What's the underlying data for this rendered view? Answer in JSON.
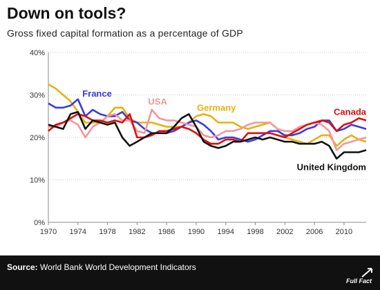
{
  "title": "Down on tools?",
  "subtitle": "Gross fixed capital formation as a percentage of GDP",
  "source": {
    "label": "Source:",
    "text": "World Bank World Development Indicators"
  },
  "brand": "Full Fact",
  "chart_data": {
    "type": "line",
    "title": "Down on tools?",
    "subtitle": "Gross fixed capital formation as a percentage of GDP",
    "xlabel": "",
    "ylabel": "",
    "xlim": [
      1970,
      2013
    ],
    "ylim": [
      0,
      40
    ],
    "x_ticks": [
      1970,
      1974,
      1978,
      1982,
      1986,
      1990,
      1994,
      1998,
      2002,
      2006,
      2010
    ],
    "y_ticks": [
      0,
      10,
      20,
      30,
      40
    ],
    "y_tick_labels": [
      "0%",
      "10%",
      "20%",
      "30%",
      "40%"
    ],
    "grid": true,
    "legend": "inline labels",
    "x": [
      1970,
      1971,
      1972,
      1973,
      1974,
      1975,
      1976,
      1977,
      1978,
      1979,
      1980,
      1981,
      1982,
      1983,
      1984,
      1985,
      1986,
      1987,
      1988,
      1989,
      1990,
      1991,
      1992,
      1993,
      1994,
      1995,
      1996,
      1997,
      1998,
      1999,
      2000,
      2001,
      2002,
      2003,
      2004,
      2005,
      2006,
      2007,
      2008,
      2009,
      2010,
      2011,
      2012,
      2013
    ],
    "series": [
      {
        "name": "Germany",
        "color": "#e8b10c",
        "values": [
          32.5,
          31.5,
          30.0,
          28.5,
          26.0,
          23.5,
          23.5,
          23.5,
          25.0,
          27.0,
          27.0,
          24.5,
          23.5,
          23.5,
          23.5,
          23.0,
          22.5,
          22.5,
          22.5,
          23.5,
          25.0,
          25.5,
          25.0,
          23.5,
          23.5,
          23.5,
          22.5,
          22.0,
          22.5,
          23.0,
          23.5,
          22.0,
          20.0,
          19.5,
          19.0,
          18.5,
          19.5,
          20.5,
          20.5,
          18.0,
          19.5,
          20.5,
          19.5,
          19.0
        ]
      },
      {
        "name": "France",
        "color": "#3a3ae0",
        "values": [
          28.0,
          27.0,
          27.0,
          27.5,
          29.0,
          25.0,
          26.5,
          25.5,
          25.0,
          25.0,
          26.0,
          24.0,
          23.5,
          22.0,
          21.0,
          21.0,
          21.0,
          21.5,
          22.5,
          23.5,
          24.0,
          23.0,
          21.5,
          19.5,
          20.0,
          20.0,
          19.5,
          19.0,
          19.5,
          20.5,
          21.5,
          21.5,
          20.5,
          20.5,
          21.0,
          22.0,
          22.5,
          24.0,
          24.0,
          21.5,
          22.0,
          23.0,
          22.5,
          22.0
        ]
      },
      {
        "name": "USA",
        "color": "#f5969a",
        "values": [
          22.5,
          22.5,
          23.5,
          24.0,
          23.0,
          20.0,
          22.5,
          23.5,
          25.0,
          25.5,
          24.0,
          24.0,
          21.5,
          21.0,
          26.5,
          24.5,
          24.0,
          24.0,
          23.5,
          23.0,
          22.5,
          20.5,
          20.0,
          20.5,
          21.5,
          21.5,
          22.0,
          23.0,
          23.5,
          23.5,
          23.5,
          22.0,
          21.5,
          21.5,
          22.5,
          23.0,
          23.5,
          23.0,
          21.5,
          17.0,
          18.5,
          19.0,
          19.5,
          20.0
        ]
      },
      {
        "name": "Canada",
        "color": "#e00d0d",
        "values": [
          21.5,
          23.0,
          23.5,
          24.5,
          25.5,
          25.0,
          24.0,
          24.0,
          23.5,
          24.0,
          23.5,
          25.5,
          20.0,
          20.0,
          20.5,
          21.5,
          21.5,
          22.0,
          22.5,
          22.0,
          21.0,
          19.5,
          18.5,
          18.5,
          19.5,
          19.5,
          19.0,
          21.0,
          21.0,
          21.0,
          21.0,
          20.5,
          20.0,
          21.0,
          22.0,
          23.0,
          23.5,
          24.0,
          23.5,
          21.5,
          23.0,
          23.5,
          24.5,
          24.0
        ]
      },
      {
        "name": "United Kingdom",
        "color": "#111111",
        "values": [
          23.0,
          22.5,
          22.0,
          25.5,
          26.0,
          22.0,
          24.0,
          23.5,
          23.0,
          23.5,
          20.0,
          18.0,
          19.0,
          20.0,
          21.0,
          21.0,
          21.0,
          22.5,
          24.5,
          25.5,
          22.5,
          19.0,
          18.0,
          17.5,
          18.0,
          19.0,
          19.0,
          19.5,
          20.0,
          19.5,
          20.0,
          19.5,
          19.0,
          19.0,
          18.5,
          18.5,
          18.5,
          19.0,
          18.0,
          15.0,
          16.5,
          16.5,
          16.5,
          17.0
        ]
      }
    ]
  }
}
